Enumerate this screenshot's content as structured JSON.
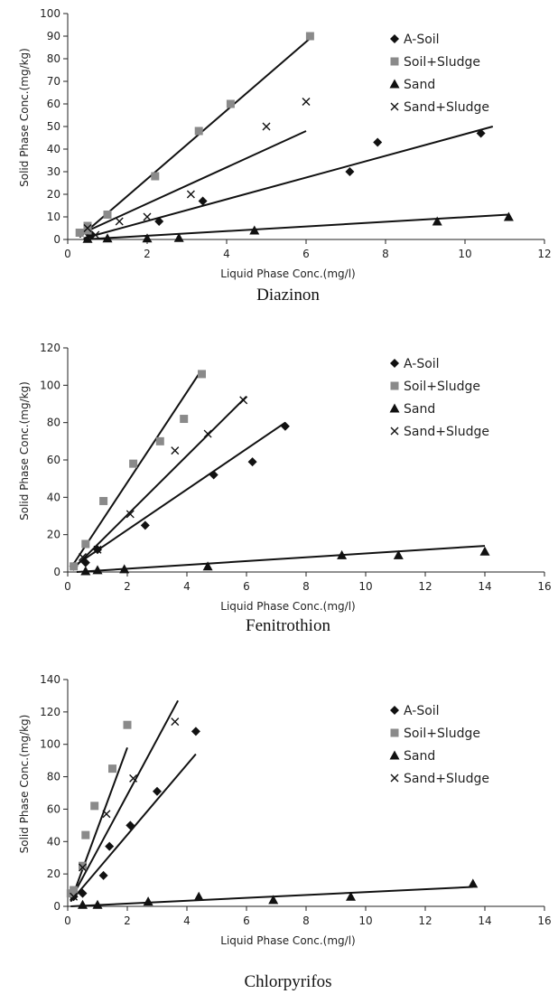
{
  "chart_data": [
    {
      "type": "scatter",
      "caption": "Diazinon",
      "xlabel": "Liquid Phase Conc.(mg/l)",
      "ylabel": "Solid Phase Conc.(mg/kg)",
      "xlim": [
        0,
        12
      ],
      "ylim": [
        0,
        100
      ],
      "xticks": [
        0,
        2,
        4,
        6,
        8,
        10,
        12
      ],
      "yticks": [
        0,
        10,
        20,
        30,
        40,
        50,
        60,
        70,
        80,
        90,
        100
      ],
      "grid": false,
      "legend_position": "top-right",
      "series": [
        {
          "name": "A-Soil",
          "marker": "diamond",
          "color": "#111111",
          "x": [
            0.5,
            0.6,
            2.3,
            3.4,
            7.1,
            7.8,
            10.4
          ],
          "y": [
            3,
            2,
            8,
            17,
            30,
            43,
            47
          ],
          "fit": [
            [
              0.4,
              0.5
            ],
            [
              10.7,
              50
            ]
          ]
        },
        {
          "name": "Soil+Sludge",
          "marker": "square",
          "color": "#8a8a8a",
          "x": [
            0.3,
            0.5,
            0.5,
            1.0,
            2.2,
            3.3,
            4.1,
            6.1
          ],
          "y": [
            3,
            4,
            6,
            11,
            28,
            48,
            60,
            90
          ],
          "fit": [
            [
              0.3,
              1
            ],
            [
              6.1,
              89
            ]
          ]
        },
        {
          "name": "Sand",
          "marker": "triangle",
          "color": "#111111",
          "x": [
            0.5,
            1.0,
            2.0,
            2.8,
            4.7,
            9.3,
            11.1
          ],
          "y": [
            0.3,
            0.5,
            0.5,
            0.7,
            4,
            8,
            10
          ],
          "fit": [
            [
              0.4,
              0
            ],
            [
              11.1,
              11
            ]
          ]
        },
        {
          "name": "Sand+Sludge",
          "marker": "x",
          "color": "#111111",
          "x": [
            0.5,
            0.7,
            1.3,
            2.0,
            3.1,
            5.0,
            6.0
          ],
          "y": [
            5,
            2,
            8,
            10,
            20,
            50,
            61
          ],
          "fit": [
            [
              0.4,
              3
            ],
            [
              6.0,
              48
            ]
          ]
        }
      ]
    },
    {
      "type": "scatter",
      "caption": "Fenitrothion",
      "xlabel": "Liquid Phase Conc.(mg/l)",
      "ylabel": "Solid Phase Conc.(mg/kg)",
      "xlim": [
        0,
        16
      ],
      "ylim": [
        0,
        120
      ],
      "xticks": [
        0,
        2,
        4,
        6,
        8,
        10,
        12,
        14,
        16
      ],
      "yticks": [
        0,
        20,
        40,
        60,
        80,
        100,
        120
      ],
      "grid": false,
      "legend_position": "top-right",
      "series": [
        {
          "name": "A-Soil",
          "marker": "diamond",
          "color": "#111111",
          "x": [
            0.2,
            0.6,
            1.0,
            2.6,
            4.9,
            6.2,
            7.3
          ],
          "y": [
            3,
            5,
            12,
            25,
            52,
            59,
            78
          ],
          "fit": [
            [
              0.2,
              3
            ],
            [
              7.3,
              80
            ]
          ]
        },
        {
          "name": "Soil+Sludge",
          "marker": "square",
          "color": "#8a8a8a",
          "x": [
            0.2,
            0.6,
            1.2,
            2.2,
            3.1,
            3.9,
            4.5
          ],
          "y": [
            3,
            15,
            38,
            58,
            70,
            82,
            106
          ],
          "fit": [
            [
              0.1,
              2
            ],
            [
              4.4,
              106
            ]
          ]
        },
        {
          "name": "Sand",
          "marker": "triangle",
          "color": "#111111",
          "x": [
            0.6,
            1.0,
            1.9,
            4.7,
            9.2,
            11.1,
            14.0
          ],
          "y": [
            0.5,
            1,
            1.5,
            3,
            9,
            9,
            11
          ],
          "fit": [
            [
              0.3,
              0
            ],
            [
              14.0,
              14
            ]
          ]
        },
        {
          "name": "Sand+Sludge",
          "marker": "x",
          "color": "#111111",
          "x": [
            0.5,
            1.0,
            2.1,
            3.6,
            4.7,
            5.9
          ],
          "y": [
            8,
            12,
            31,
            65,
            74,
            92
          ],
          "fit": [
            [
              0.2,
              2
            ],
            [
              6.0,
              94
            ]
          ]
        }
      ]
    },
    {
      "type": "scatter",
      "caption": "Chlorpyrifos",
      "xlabel": "Liquid Phase Conc.(mg/l)",
      "ylabel": "Solid Phase Conc.(mg/kg)",
      "xlim": [
        0,
        16
      ],
      "ylim": [
        0,
        140
      ],
      "xticks": [
        0,
        2,
        4,
        6,
        8,
        10,
        12,
        14,
        16
      ],
      "yticks": [
        0,
        20,
        40,
        60,
        80,
        100,
        120,
        140
      ],
      "grid": false,
      "legend_position": "top-right",
      "series": [
        {
          "name": "A-Soil",
          "marker": "diamond",
          "color": "#111111",
          "x": [
            0.2,
            0.5,
            1.2,
            1.4,
            2.1,
            3.0,
            4.3
          ],
          "y": [
            6,
            8,
            19,
            37,
            50,
            71,
            108
          ],
          "fit": [
            [
              0.1,
              3
            ],
            [
              4.3,
              94
            ]
          ]
        },
        {
          "name": "Soil+Sludge",
          "marker": "square",
          "color": "#8a8a8a",
          "x": [
            0.1,
            0.2,
            0.5,
            0.6,
            0.9,
            1.5,
            2.0
          ],
          "y": [
            8,
            10,
            25,
            44,
            62,
            85,
            112
          ],
          "fit": [
            [
              0.1,
              3
            ],
            [
              2.0,
              98
            ]
          ]
        },
        {
          "name": "Sand",
          "marker": "triangle",
          "color": "#111111",
          "x": [
            0.5,
            1.0,
            2.7,
            4.4,
            6.9,
            9.5,
            13.6
          ],
          "y": [
            1,
            1,
            3,
            6,
            4,
            6,
            14
          ],
          "fit": [
            [
              0.1,
              0
            ],
            [
              13.6,
              12
            ]
          ]
        },
        {
          "name": "Sand+Sludge",
          "marker": "x",
          "color": "#111111",
          "x": [
            0.2,
            0.5,
            1.3,
            2.2,
            3.6
          ],
          "y": [
            6,
            24,
            57,
            79,
            114
          ],
          "fit": [
            [
              0.1,
              4
            ],
            [
              3.7,
              127
            ]
          ]
        }
      ]
    }
  ]
}
